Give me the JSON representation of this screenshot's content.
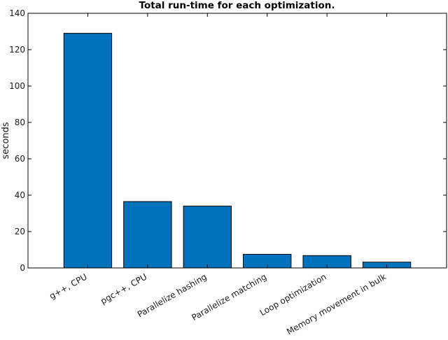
{
  "chart_data": {
    "type": "bar",
    "title": "Total run-time for each optimization.",
    "xlabel": "",
    "ylabel": "seconds",
    "ylim": [
      0,
      140
    ],
    "yticks": [
      0,
      20,
      40,
      60,
      80,
      100,
      120,
      140
    ],
    "categories": [
      "g++, CPU",
      "pgc++, CPU",
      "Parallelize hashing",
      "Parallelize matching",
      "Loop optimization",
      "Memory movement in bulk"
    ],
    "values": [
      129,
      36.5,
      34,
      7.5,
      6.8,
      3.2
    ],
    "bar_color": "#0072bd",
    "grid": false
  }
}
